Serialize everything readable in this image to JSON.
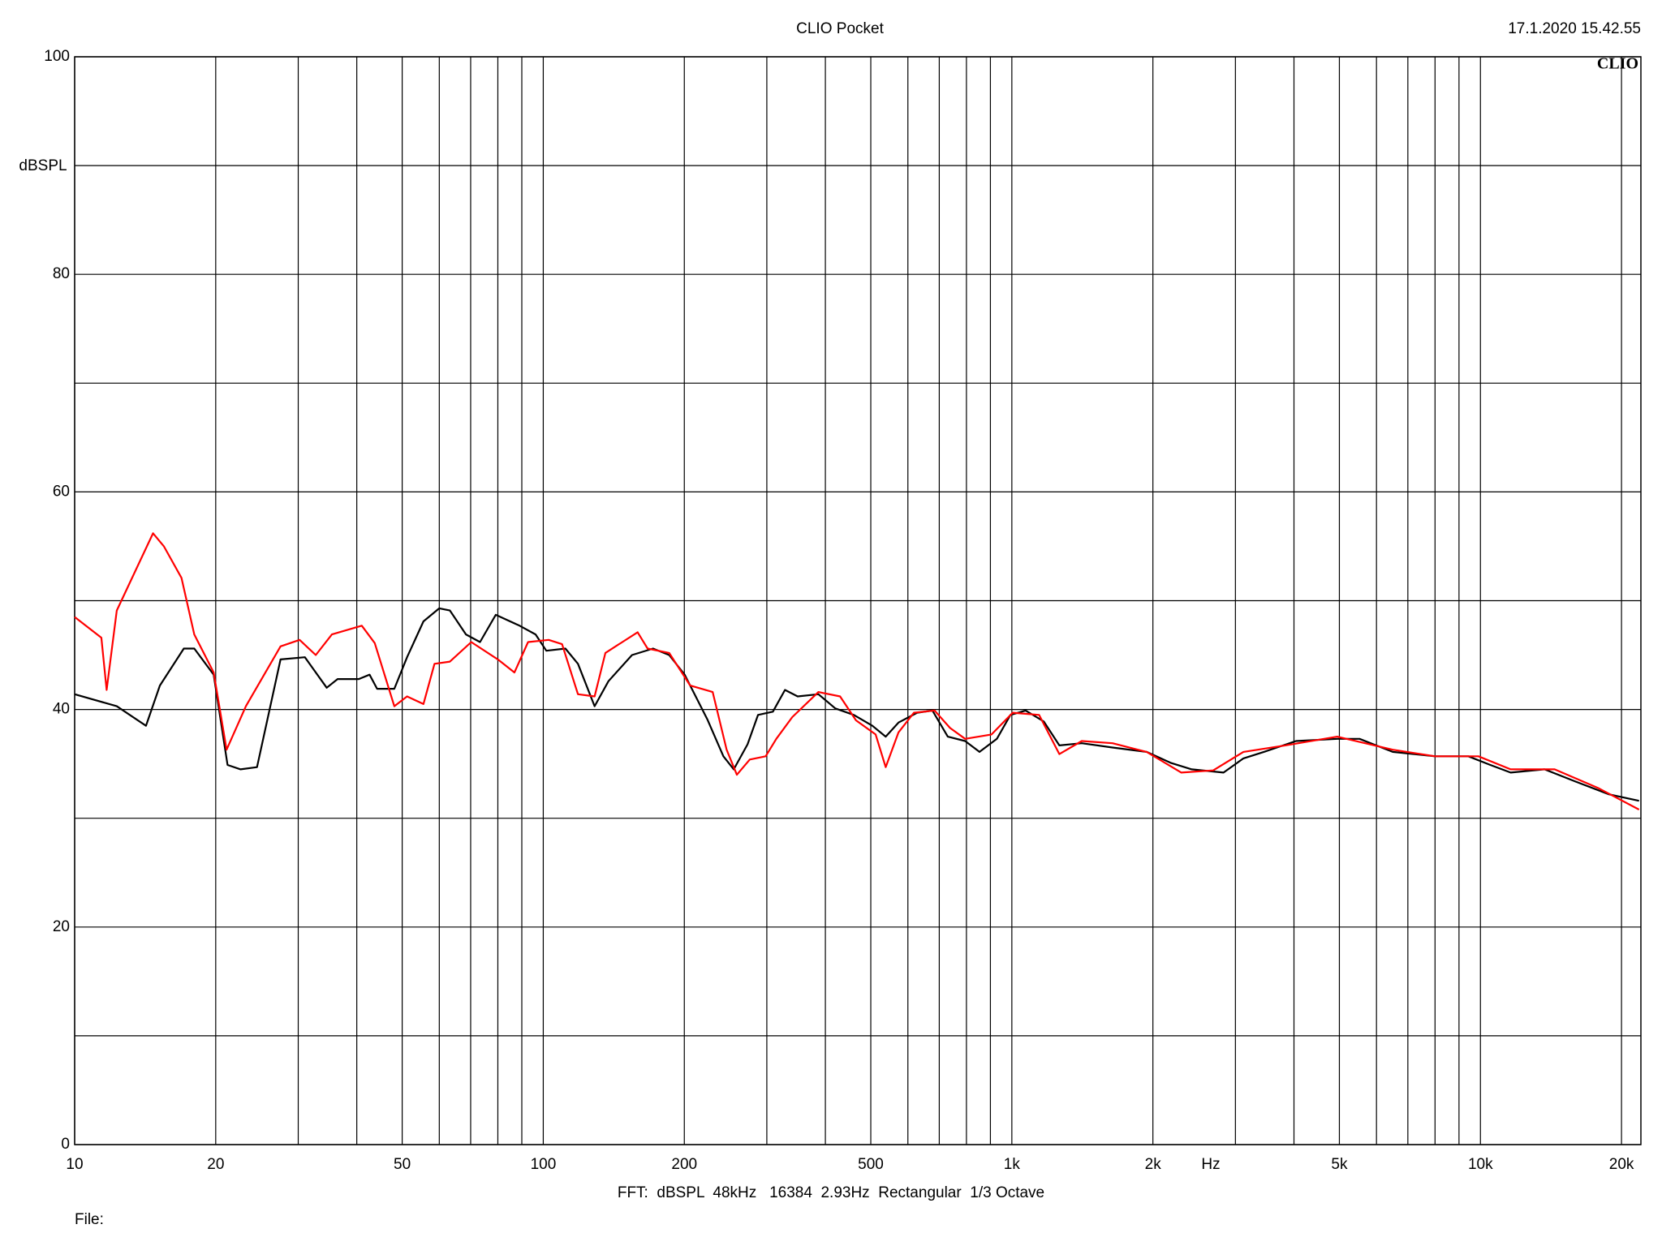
{
  "chart_data": {
    "type": "line",
    "title": "CLIO Pocket",
    "timestamp": "17.1.2020 15.42.55",
    "logo": "CLIO",
    "y_label": "dBSPL",
    "x_label": "Hz",
    "footer": "FFT:  dBSPL  48kHz   16384  2.93Hz  Rectangular  1/3 Octave",
    "file_label": "File:",
    "log_x": true,
    "grid": true,
    "xlim": [
      10,
      22000
    ],
    "xticks": [
      10,
      20,
      50,
      100,
      200,
      500,
      {
        "value": 1000,
        "label": "1k"
      },
      {
        "value": 2000,
        "label": "2k"
      },
      {
        "value": 5000,
        "label": "5k"
      },
      {
        "value": 10000,
        "label": "10k"
      },
      {
        "value": 20000,
        "label": "20k"
      }
    ],
    "xminor": [
      30,
      40,
      60,
      70,
      80,
      90,
      300,
      400,
      600,
      700,
      800,
      900,
      3000,
      4000,
      6000,
      7000,
      8000,
      9000
    ],
    "ylim": [
      0,
      100
    ],
    "yticks": [
      0,
      20,
      40,
      60,
      80,
      100
    ],
    "yminor": [
      10,
      30,
      50,
      70,
      90
    ],
    "series": [
      {
        "color": "#000000",
        "x": [
          10,
          12.3,
          14.2,
          15.2,
          17.1,
          18,
          19.8,
          21.2,
          22.6,
          24.5,
          27.5,
          31,
          34.5,
          36.4,
          40.4,
          42.6,
          44.2,
          48.1,
          51.2,
          55.5,
          60,
          63.2,
          68.4,
          73.3,
          79.2,
          89,
          96.3,
          101.5,
          111.5,
          118.6,
          128.7,
          137.8,
          154.7,
          171.5,
          185.7,
          200.4,
          223.9,
          242.3,
          255,
          272.9,
          287.3,
          309.1,
          328,
          349,
          386.5,
          420,
          460,
          504,
          538,
          573,
          628,
          677,
          730,
          795,
          853,
          929,
          993,
          1070,
          1170,
          1263,
          1410,
          1640,
          1940,
          2180,
          2420,
          2830,
          3120,
          3450,
          4040,
          4950,
          5520,
          6500,
          8000,
          9420,
          10500,
          11600,
          13700,
          15900,
          18800,
          21800
        ],
        "values": [
          41.4,
          40.3,
          38.5,
          42.2,
          45.6,
          45.6,
          43.2,
          34.9,
          34.5,
          34.7,
          44.6,
          44.8,
          42,
          42.8,
          42.8,
          43.2,
          41.9,
          41.9,
          44.8,
          48.1,
          49.3,
          49.1,
          46.9,
          46.2,
          48.7,
          47.7,
          46.9,
          45.4,
          45.6,
          44.2,
          40.3,
          42.6,
          45,
          45.6,
          45,
          43.2,
          39.1,
          35.7,
          34.5,
          36.8,
          39.5,
          39.8,
          41.8,
          41.2,
          41.4,
          40.1,
          39.5,
          38.5,
          37.5,
          38.8,
          39.7,
          39.9,
          37.5,
          37.1,
          36.1,
          37.3,
          39.5,
          39.9,
          38.9,
          36.7,
          36.9,
          36.5,
          36.1,
          35.1,
          34.5,
          34.2,
          35.5,
          36.1,
          37.1,
          37.3,
          37.3,
          36.1,
          35.7,
          35.7,
          34.9,
          34.2,
          34.5,
          33.4,
          32.2,
          31.6
        ]
      },
      {
        "color": "#ff0000",
        "x": [
          10,
          11.4,
          11.7,
          12.3,
          13.6,
          14.7,
          15.5,
          16.9,
          18,
          19.8,
          21.1,
          23.2,
          27.5,
          30.2,
          32.7,
          35.4,
          41,
          43.7,
          48.1,
          51.2,
          55.5,
          58.6,
          63.2,
          70.2,
          80,
          86.8,
          92.8,
          102.7,
          109.7,
          118.6,
          128.7,
          135.7,
          159,
          167,
          185.7,
          205.9,
          229.9,
          246.2,
          258.9,
          275.9,
          298.3,
          314.3,
          340,
          386.5,
          430,
          465,
          512,
          538,
          573,
          618,
          684,
          738,
          795,
          905,
          1004,
          1143,
          1263,
          1410,
          1640,
          1940,
          2300,
          2690,
          3120,
          3830,
          4950,
          6500,
          8000,
          9900,
          11600,
          14400,
          17800,
          21800
        ],
        "values": [
          48.5,
          46.6,
          41.8,
          49.1,
          53.1,
          56.2,
          55,
          52.1,
          46.9,
          43.4,
          36.3,
          40.3,
          45.8,
          46.4,
          45,
          46.9,
          47.7,
          46.1,
          40.3,
          41.2,
          40.5,
          44.2,
          44.4,
          46.2,
          44.6,
          43.4,
          46.2,
          46.4,
          46,
          41.4,
          41.2,
          45.2,
          47.1,
          45.6,
          45.2,
          42.2,
          41.6,
          36.3,
          34,
          35.4,
          35.7,
          37.3,
          39.3,
          41.6,
          41.2,
          39,
          37.7,
          34.7,
          37.9,
          39.7,
          39.9,
          38.3,
          37.3,
          37.7,
          39.7,
          39.5,
          35.9,
          37.1,
          36.9,
          36.1,
          34.2,
          34.4,
          36.1,
          36.7,
          37.5,
          36.3,
          35.7,
          35.7,
          34.5,
          34.5,
          32.8,
          30.8
        ]
      }
    ]
  }
}
